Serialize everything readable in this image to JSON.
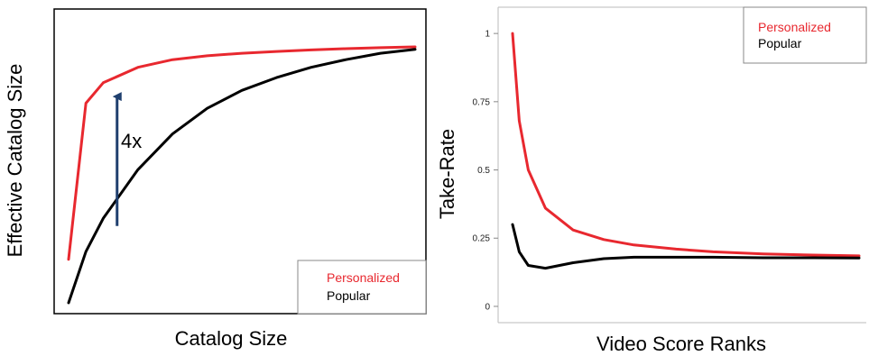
{
  "chart_data": [
    {
      "type": "line",
      "title": "",
      "xlabel": "Catalog Size",
      "ylabel": "Effective Catalog Size",
      "xticks": false,
      "yticks": false,
      "x": [
        0,
        0.05,
        0.1,
        0.2,
        0.3,
        0.4,
        0.5,
        0.6,
        0.7,
        0.8,
        0.9,
        1.0
      ],
      "xlim": [
        0,
        1
      ],
      "ylim": [
        0,
        1
      ],
      "series": [
        {
          "name": "Personalized",
          "color": "#e8282f",
          "values": [
            0.17,
            0.78,
            0.86,
            0.92,
            0.95,
            0.965,
            0.975,
            0.982,
            0.988,
            0.993,
            0.997,
            1.0
          ]
        },
        {
          "name": "Popular",
          "color": "#000000",
          "values": [
            0.0,
            0.2,
            0.33,
            0.52,
            0.66,
            0.76,
            0.83,
            0.88,
            0.92,
            0.95,
            0.975,
            0.99
          ]
        }
      ],
      "annotation": {
        "text": "4x",
        "arrow_x": 0.14,
        "arrow_from_y": 0.3,
        "arrow_to_y": 0.82,
        "color": "#1f3f6e"
      },
      "legend": {
        "position": "bottom-right",
        "entries": [
          "Personalized",
          "Popular"
        ]
      },
      "grid": false
    },
    {
      "type": "line",
      "title": "",
      "xlabel": "Video Score Ranks",
      "ylabel": "Take-Rate",
      "yticks": [
        "0",
        "0.25",
        "0.5",
        "0.75",
        "1"
      ],
      "ytick_values": [
        0,
        0.25,
        0.5,
        0.75,
        1
      ],
      "xticks": false,
      "x": [
        1,
        1.5,
        2,
        3,
        5,
        8,
        12,
        20,
        30,
        50,
        80,
        120
      ],
      "xlim": [
        1,
        120
      ],
      "ylim": [
        -0.02,
        1.05
      ],
      "series": [
        {
          "name": "Personalized",
          "color": "#e8282f",
          "values": [
            1.0,
            0.68,
            0.5,
            0.36,
            0.28,
            0.245,
            0.225,
            0.21,
            0.2,
            0.192,
            0.188,
            0.185
          ]
        },
        {
          "name": "Popular",
          "color": "#000000",
          "values": [
            0.3,
            0.2,
            0.15,
            0.14,
            0.16,
            0.175,
            0.18,
            0.18,
            0.18,
            0.178,
            0.178,
            0.177
          ]
        }
      ],
      "legend": {
        "position": "top-right",
        "entries": [
          "Personalized",
          "Popular"
        ]
      },
      "grid": false
    }
  ]
}
